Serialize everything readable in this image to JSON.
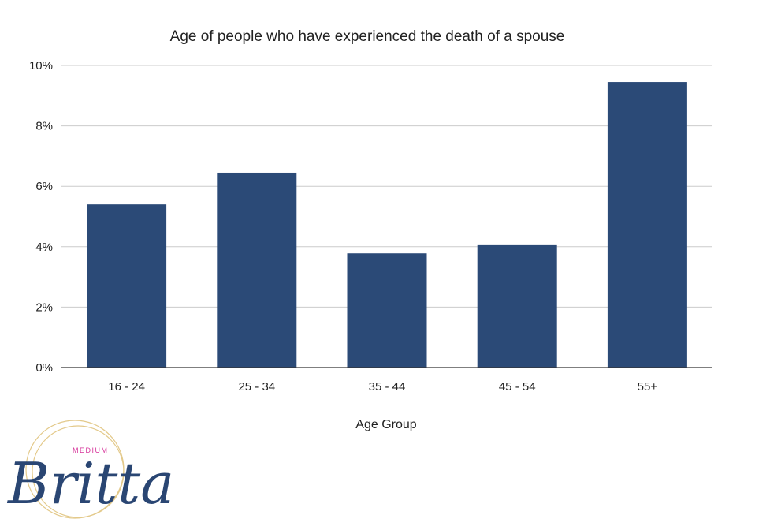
{
  "chart_data": {
    "type": "bar",
    "title": "Age of people who have experienced the death of a spouse",
    "xlabel": "Age Group",
    "ylabel": "",
    "categories": [
      "16 - 24",
      "25 - 34",
      "35 - 44",
      "45 - 54",
      "55+"
    ],
    "values": [
      5.4,
      6.45,
      3.78,
      4.05,
      9.45
    ],
    "ylim": [
      0,
      10
    ],
    "yticks": [
      "0%",
      "2%",
      "4%",
      "6%",
      "8%",
      "10%"
    ],
    "grid": true,
    "legend": "none",
    "bar_color": "#2b4a77"
  },
  "logo": {
    "small_text": "MEDIUM",
    "script_text": "Britta",
    "ring_color": "#e3c98a",
    "script_color": "#2a4673",
    "small_color": "#d6339a"
  }
}
